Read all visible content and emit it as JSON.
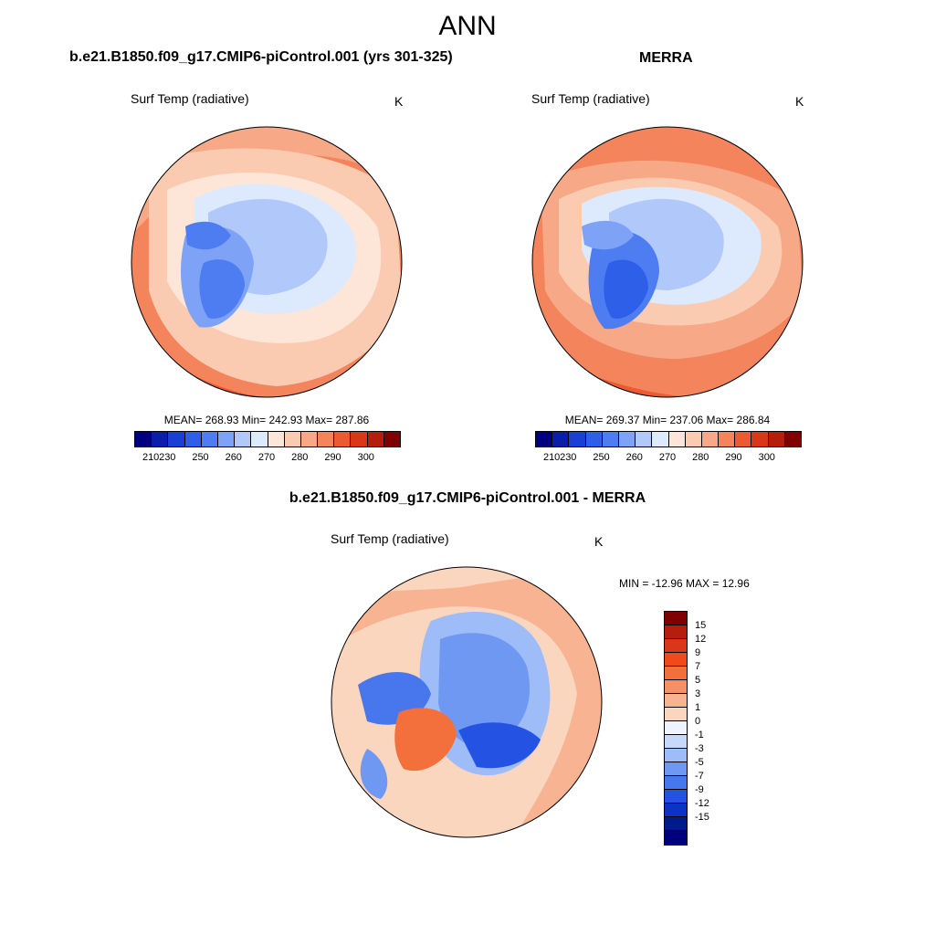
{
  "title": "ANN",
  "panels": [
    {
      "title": "b.e21.B1850.f09_g17.CMIP6-piControl.001 (yrs 301-325)",
      "variable": "Surf Temp (radiative)",
      "units": "K",
      "stats": "MEAN= 268.93  Min= 242.93  Max= 287.86"
    },
    {
      "title": "MERRA",
      "variable": "Surf Temp (radiative)",
      "units": "K",
      "stats": "MEAN= 269.37  Min= 237.06  Max= 286.84"
    },
    {
      "title": "b.e21.B1850.f09_g17.CMIP6-piControl.001 - MERRA",
      "variable": "Surf Temp (radiative)",
      "units": "K",
      "stats": "MIN = -12.96 MAX =  12.96"
    }
  ],
  "abs_colorbar": {
    "colors": [
      "#00007f",
      "#0a1eaa",
      "#1a3fd6",
      "#2d5fe8",
      "#4d7df0",
      "#7ea2f5",
      "#b0c8fa",
      "#dde9fd",
      "#fde6d8",
      "#fbcbb1",
      "#f7a886",
      "#f3845c",
      "#ec5a32",
      "#d9361a",
      "#b51e0c",
      "#7f0000"
    ],
    "ticks": [
      "210",
      "230",
      "250",
      "260",
      "270",
      "280",
      "290",
      "300"
    ]
  },
  "diff_colorbar": {
    "colors": [
      "#7f0000",
      "#b51e0c",
      "#d9361a",
      "#f04a1c",
      "#f3703c",
      "#f59066",
      "#f8b392",
      "#fbd6bf",
      "#eef4fe",
      "#c6d9fb",
      "#9dbcf8",
      "#6f98f2",
      "#4876ec",
      "#2453e4",
      "#0c33c4",
      "#001a8c",
      "#00007f"
    ],
    "ticks": [
      "15",
      "12",
      "9",
      "7",
      "5",
      "3",
      "1",
      "0",
      "-1",
      "-3",
      "-5",
      "-7",
      "-9",
      "-12",
      "-15"
    ]
  }
}
